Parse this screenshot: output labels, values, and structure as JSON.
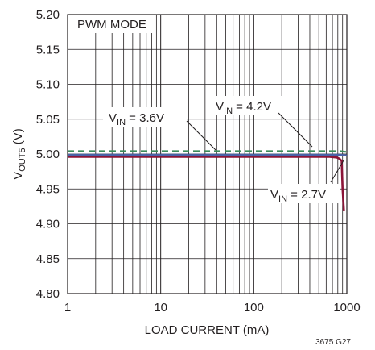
{
  "chart_data": {
    "type": "line",
    "xscale": "log",
    "xlim": [
      1,
      1000
    ],
    "ylim": [
      4.8,
      5.2
    ],
    "grid": true,
    "xlabel": "LOAD CURRENT (mA)",
    "ylabel": {
      "prefix": "V",
      "sub": "OUT5",
      "suffix": " (V)"
    },
    "x_ticks": [
      1,
      10,
      100,
      1000
    ],
    "x_tick_labels": [
      "1",
      "10",
      "100",
      "1000"
    ],
    "y_ticks": [
      4.8,
      4.85,
      4.9,
      4.95,
      5.0,
      5.05,
      5.1,
      5.15,
      5.2
    ],
    "y_tick_labels": [
      "4.80",
      "4.85",
      "4.90",
      "4.95",
      "5.00",
      "5.05",
      "5.10",
      "5.15",
      "5.20"
    ],
    "mode_label": "PWM MODE",
    "series": [
      {
        "label": {
          "prefix": "V",
          "sub": "IN",
          "suffix": " = 4.2V"
        },
        "color": "#3b8a5a",
        "dash": "8,5",
        "x": [
          1,
          10,
          100,
          500,
          700,
          850,
          1000
        ],
        "y": [
          5.004,
          5.004,
          5.004,
          5.004,
          5.004,
          5.004,
          5.003
        ]
      },
      {
        "label": {
          "prefix": "V",
          "sub": "IN",
          "suffix": " = 3.6V"
        },
        "color": "#4a63a8",
        "dash": "",
        "x": [
          1,
          10,
          100,
          500,
          700,
          850,
          1000
        ],
        "y": [
          4.999,
          4.999,
          4.999,
          4.999,
          4.999,
          4.999,
          4.998
        ]
      },
      {
        "label": {
          "prefix": "V",
          "sub": "IN",
          "suffix": " = 2.7V"
        },
        "color": "#8b1538",
        "dash": "",
        "x": [
          1,
          10,
          100,
          500,
          650,
          780,
          840,
          880,
          900,
          930
        ],
        "y": [
          4.996,
          4.996,
          4.996,
          4.996,
          4.996,
          4.995,
          4.993,
          4.99,
          4.95,
          4.918
        ]
      }
    ],
    "figure_ref": "3675 G27"
  }
}
